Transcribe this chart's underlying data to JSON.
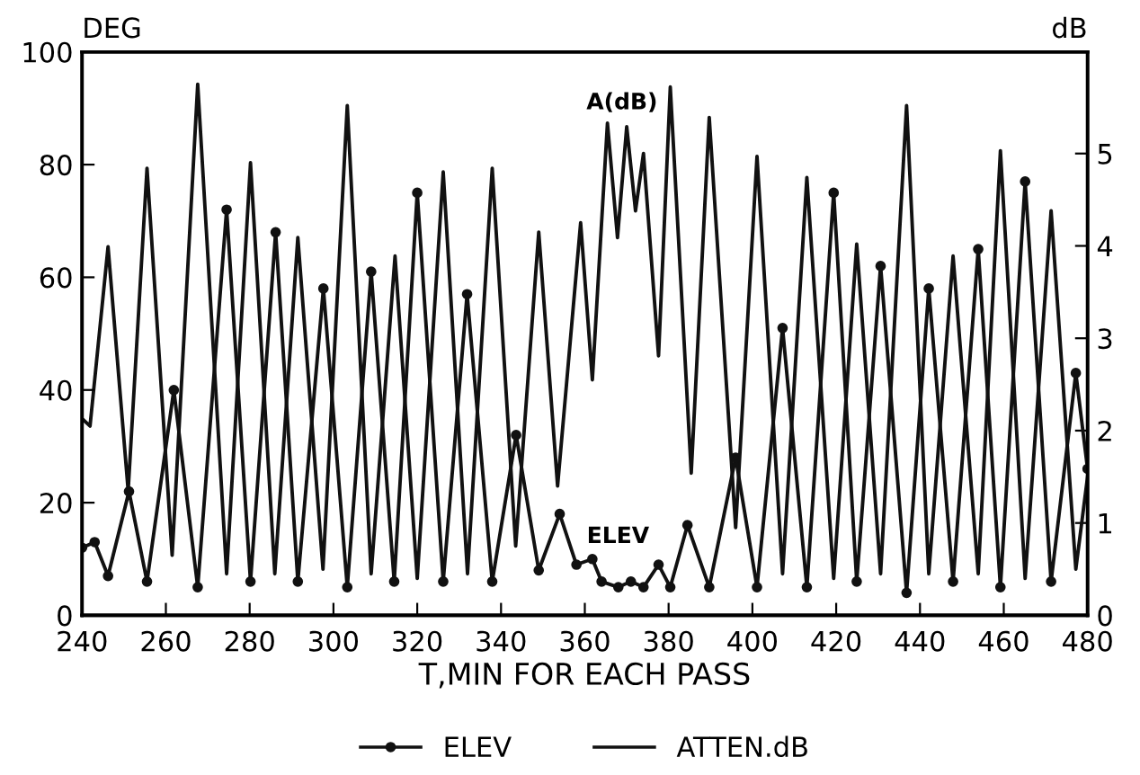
{
  "chart_data": {
    "type": "line",
    "xlabel": "T,MIN FOR EACH PASS",
    "ylabel": "DEG",
    "y2label": "dB",
    "xlim": [
      240,
      480
    ],
    "xticks": [
      240,
      260,
      280,
      300,
      320,
      340,
      360,
      380,
      400,
      420,
      440,
      460,
      480
    ],
    "ylim": [
      0,
      100
    ],
    "yticks": [
      0,
      20,
      40,
      60,
      80,
      100
    ],
    "y2lim": [
      0,
      6.1
    ],
    "y2ticks": [
      0,
      1,
      2,
      3,
      4,
      5
    ],
    "grid": false,
    "legend": "bottom",
    "line_style": "solid",
    "annotations": [
      "A(dB)",
      "ELEV"
    ],
    "series": [
      {
        "name": "ELEV",
        "color": "#111111",
        "marker": "circle",
        "x": [
          240,
          243,
          246.2,
          251.2,
          255.5,
          261.9,
          267.6,
          274.5,
          280.2,
          286.2,
          291.5,
          297.6,
          303.3,
          309,
          314.5,
          320,
          326.2,
          331.9,
          337.9,
          343.6,
          349,
          354,
          358,
          361.8,
          364,
          368,
          371,
          374,
          377.6,
          380.4,
          384.5,
          389.7,
          396,
          401.1,
          407.2,
          413,
          419.4,
          424.9,
          430.6,
          436.8,
          442.1,
          447.9,
          453.9,
          459.2,
          465.1,
          471.3,
          477.2,
          480
        ],
        "values": [
          12,
          13,
          7,
          22,
          6,
          40,
          5,
          72,
          6,
          68,
          6,
          58,
          5,
          61,
          6,
          75,
          6,
          57,
          6,
          32,
          8,
          18,
          9,
          10,
          6,
          5,
          6,
          5,
          9,
          5,
          16,
          5,
          28,
          5,
          51,
          5,
          75,
          6,
          62,
          4,
          58,
          6,
          65,
          5,
          77,
          6,
          43,
          26
        ]
      },
      {
        "name": "ATTEN.dB",
        "color": "#111111",
        "marker": "none",
        "axis": "y2",
        "x": [
          240,
          241.9,
          246.2,
          251,
          255.5,
          261.5,
          267.6,
          274.5,
          280.2,
          286,
          291.5,
          297.5,
          303.3,
          309,
          314.7,
          320,
          326.2,
          332,
          337.9,
          343.5,
          349,
          353.5,
          359,
          361.8,
          365.4,
          367.8,
          370,
          372.1,
          374,
          377.6,
          380.4,
          385.4,
          389.7,
          396,
          401.1,
          407.2,
          413,
          419.4,
          424.9,
          430.6,
          436.8,
          442.1,
          447.9,
          453.9,
          459.2,
          465.1,
          471.3,
          477.2,
          480
        ],
        "values": [
          2.13,
          2.05,
          3.99,
          1.35,
          4.84,
          0.65,
          5.75,
          0.45,
          4.9,
          0.45,
          4.09,
          0.5,
          5.52,
          0.45,
          3.89,
          0.4,
          4.8,
          0.45,
          4.84,
          0.75,
          4.15,
          1.4,
          4.25,
          2.55,
          5.33,
          4.09,
          5.29,
          4.38,
          5.0,
          2.81,
          5.72,
          1.54,
          5.39,
          0.95,
          4.97,
          0.45,
          4.74,
          0.4,
          4.02,
          0.45,
          5.52,
          0.45,
          3.89,
          0.45,
          5.03,
          0.4,
          4.38,
          0.5,
          1.5
        ]
      }
    ]
  }
}
